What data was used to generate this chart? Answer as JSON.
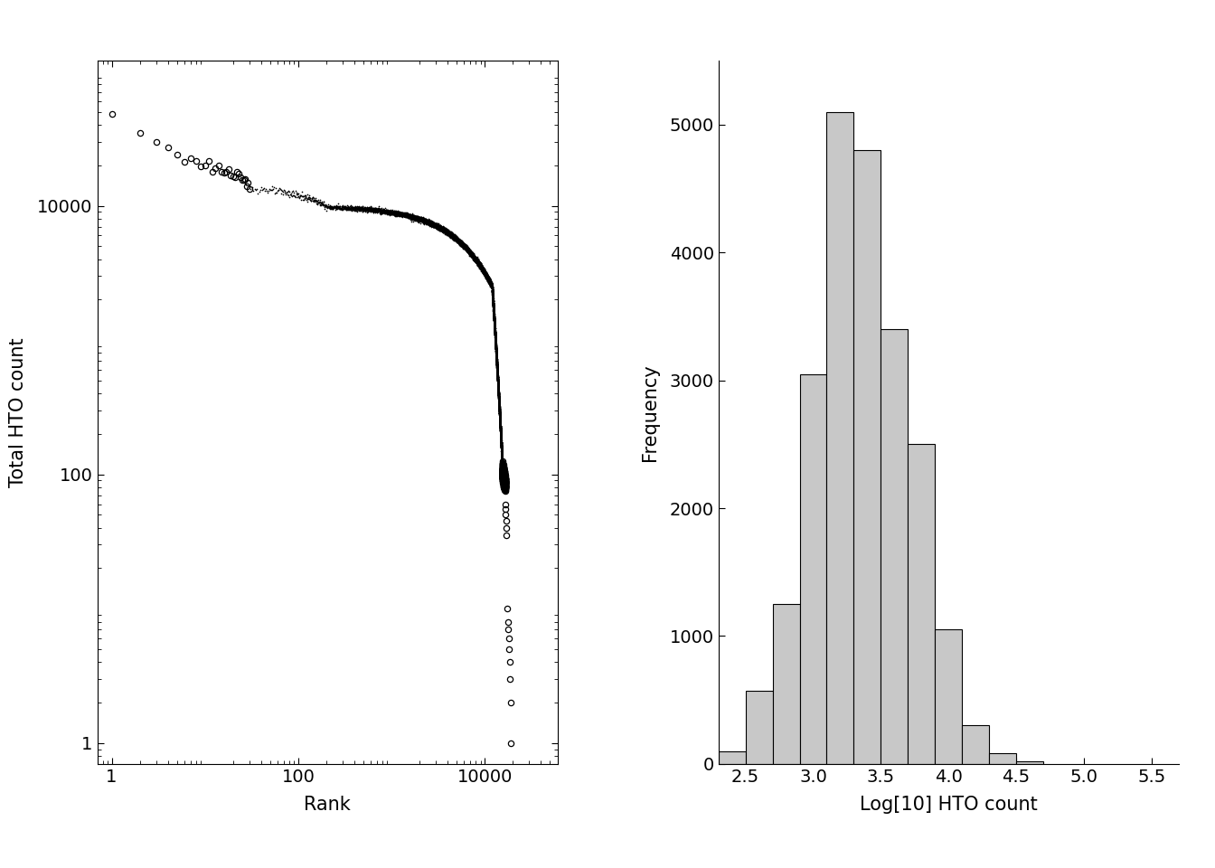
{
  "left_plot": {
    "xlabel": "Rank",
    "ylabel": "Total HTO count",
    "x_ticks": [
      1,
      100,
      10000
    ],
    "x_ticklabels": [
      "1",
      "100",
      "10000"
    ],
    "y_ticks": [
      1,
      100,
      10000
    ],
    "y_ticklabels": [
      "1",
      "100",
      "10000"
    ],
    "xlim": [
      0.7,
      60000
    ],
    "ylim": [
      0.7,
      120000
    ]
  },
  "right_plot": {
    "xlabel": "Log[10] HTO count",
    "ylabel": "Frequency",
    "xlim": [
      2.3,
      5.7
    ],
    "ylim": [
      0,
      5500
    ],
    "x_ticks": [
      2.5,
      3.0,
      3.5,
      4.0,
      4.5,
      5.0,
      5.5
    ],
    "x_ticklabels": [
      "2.5",
      "3.0",
      "3.5",
      "4.0",
      "4.5",
      "5.0",
      "5.5"
    ],
    "y_ticks": [
      0,
      1000,
      2000,
      3000,
      4000,
      5000
    ],
    "y_ticklabels": [
      "0",
      "1000",
      "2000",
      "3000",
      "4000",
      "5000"
    ],
    "bin_left_edges": [
      2.3,
      2.5,
      2.7,
      2.9,
      3.1,
      3.3,
      3.5,
      3.7,
      3.9,
      4.1,
      4.3,
      4.5,
      4.7
    ],
    "bin_heights": [
      100,
      570,
      1250,
      3050,
      5100,
      4800,
      3400,
      2500,
      1050,
      300,
      80,
      20,
      0
    ],
    "bar_color": "#c8c8c8",
    "bar_edgecolor": "black",
    "bar_linewidth": 0.8,
    "bar_width": 0.2
  },
  "background_color": "white"
}
